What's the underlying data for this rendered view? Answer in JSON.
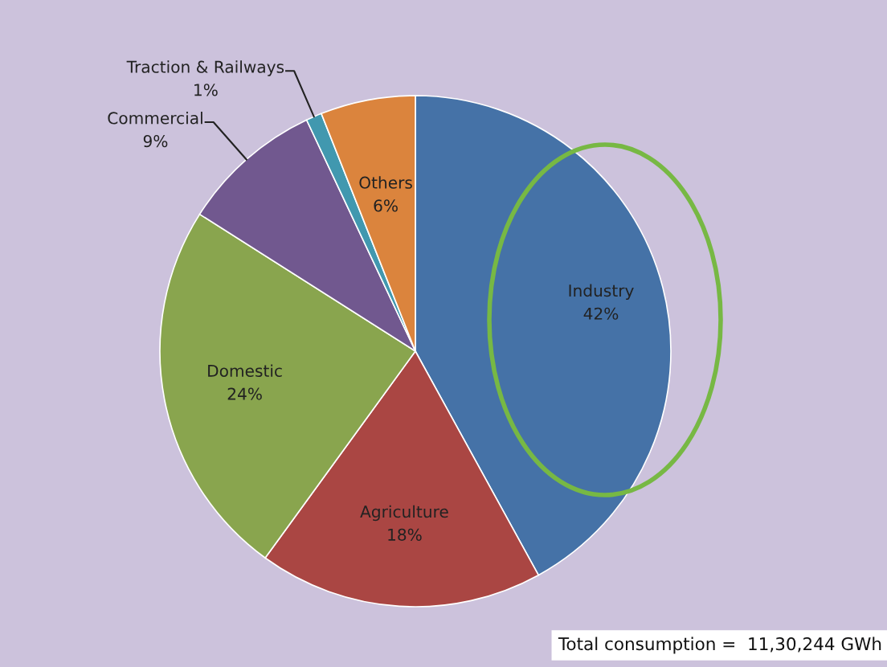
{
  "chart_data": {
    "type": "pie",
    "categories": [
      "Industry",
      "Agriculture",
      "Domestic",
      "Commercial",
      "Traction & Railways",
      "Others"
    ],
    "values": [
      42,
      18,
      24,
      9,
      1,
      6
    ],
    "value_labels": [
      "42%",
      "18%",
      "24%",
      "9%",
      "1%",
      "6%"
    ],
    "colors": [
      "#4572a7",
      "#aa4643",
      "#89a54e",
      "#71588f",
      "#4198af",
      "#db843d"
    ],
    "annotations": [
      "Total consumption =  11,30,244 GWh"
    ],
    "legend": false
  }
}
